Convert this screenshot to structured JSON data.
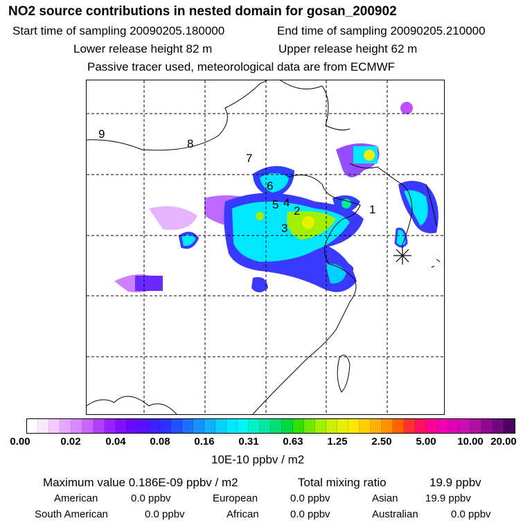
{
  "header": {
    "title": "NO2 source contributions in nested domain for gosan_200902",
    "start_time": "Start time of sampling 20090205.180000",
    "end_time": "End time of sampling 20090205.210000",
    "lower_height": "Lower release height   82 m",
    "upper_height": "Upper release height   62 m",
    "note": "Passive tracer used, meteorological data are from ECMWF"
  },
  "map": {
    "labels": [
      "1",
      "2",
      "3",
      "4",
      "5",
      "6",
      "7",
      "8",
      "9"
    ],
    "receptor": "gosan"
  },
  "colorbar": {
    "ticks": [
      "0.00",
      "0.02",
      "0.04",
      "0.08",
      "0.16",
      "0.31",
      "0.63",
      "1.25",
      "2.50",
      "5.00",
      "10.00",
      "20.00"
    ],
    "unit": "10E-10 ppbv / m2",
    "colors": [
      "#ffffff",
      "#fbe6ff",
      "#f2c8ff",
      "#e6a6ff",
      "#d888ff",
      "#c864ff",
      "#b040ff",
      "#9a20ff",
      "#8010ff",
      "#6a0aff",
      "#5a10ff",
      "#4020ff",
      "#2e30ff",
      "#2050ff",
      "#1a70ff",
      "#1890ff",
      "#10b0ff",
      "#08d0ff",
      "#00e8ff",
      "#00f6f0",
      "#00f0c8",
      "#00e8a0",
      "#00e070",
      "#00d840",
      "#30e000",
      "#70e800",
      "#a0f000",
      "#c8f000",
      "#e8f000",
      "#ffe800",
      "#ffd000",
      "#ffb000",
      "#ff9000",
      "#ff6000",
      "#ff3030",
      "#ff1060",
      "#ff0090",
      "#f000b0",
      "#e000b8",
      "#cc10b0",
      "#b010a0",
      "#900890",
      "#700880",
      "#500060"
    ]
  },
  "stats": {
    "maximum": "Maximum value  0.186E-09 ppbv / m2",
    "total": "Total mixing ratio",
    "total_value": "19.9 ppbv"
  },
  "regions": [
    {
      "name": "American",
      "value": "0.0 ppbv"
    },
    {
      "name": "European",
      "value": "0.0 ppbv"
    },
    {
      "name": "Asian",
      "value": "19.9 ppbv"
    },
    {
      "name": "South American",
      "value": "0.0 ppbv"
    },
    {
      "name": "African",
      "value": "0.0 ppbv"
    },
    {
      "name": "Australian",
      "value": "0.0 ppbv"
    }
  ]
}
